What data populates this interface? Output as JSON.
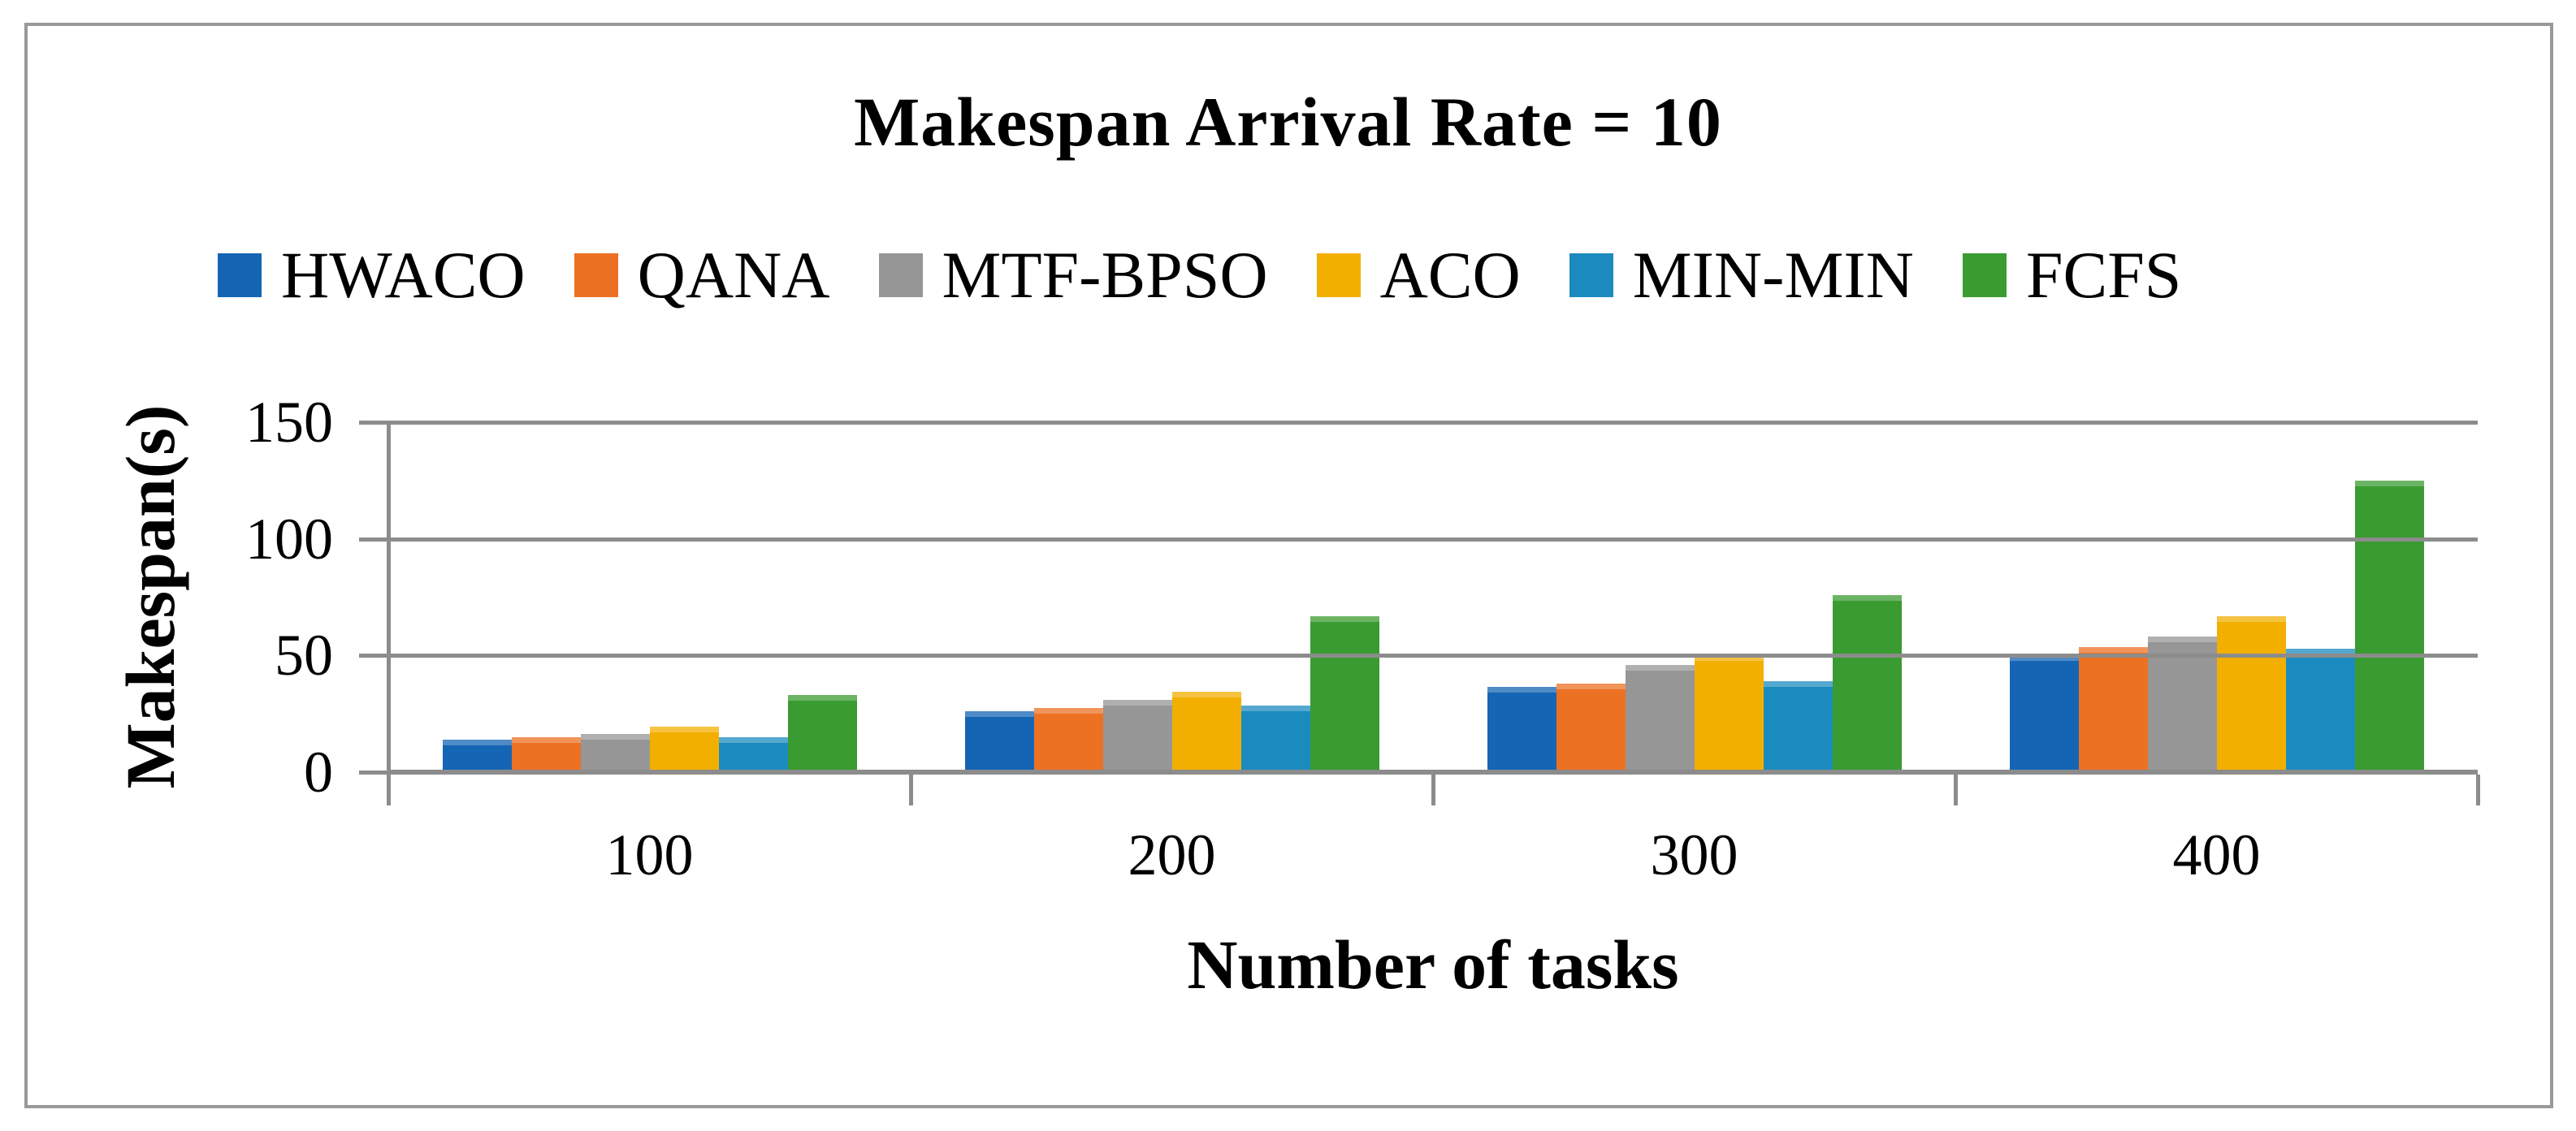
{
  "figure": {
    "title": "Makespan Arrival Rate = 10",
    "border_color": "#999999",
    "axis_color": "#8C8C8C",
    "background": "#FFFFFF"
  },
  "chart_data": {
    "type": "bar",
    "title": "Makespan Arrival Rate = 10",
    "xlabel": "Number of tasks",
    "ylabel": "Makespan(s)",
    "categories": [
      "100",
      "200",
      "300",
      "400"
    ],
    "series": [
      {
        "name": "HWACO",
        "color": "#1565B5",
        "values": [
          14,
          26,
          36.5,
          50
        ]
      },
      {
        "name": "QANA",
        "color": "#ED7123",
        "values": [
          15,
          27.5,
          38,
          53.5
        ]
      },
      {
        "name": "MTF-BPSO",
        "color": "#969696",
        "values": [
          16.5,
          31,
          46,
          58
        ]
      },
      {
        "name": "ACO",
        "color": "#F3AF00",
        "values": [
          19.5,
          34.5,
          50,
          67
        ]
      },
      {
        "name": "MIN-MIN",
        "color": "#1B8BBF",
        "values": [
          15,
          28.5,
          39,
          53
        ]
      },
      {
        "name": "FCFS",
        "color": "#3A9B31",
        "values": [
          33,
          67,
          76,
          125
        ]
      }
    ],
    "ylim": [
      0,
      150
    ],
    "yticks": [
      0,
      50,
      100,
      150
    ],
    "grid": true,
    "legend_position": "top"
  }
}
